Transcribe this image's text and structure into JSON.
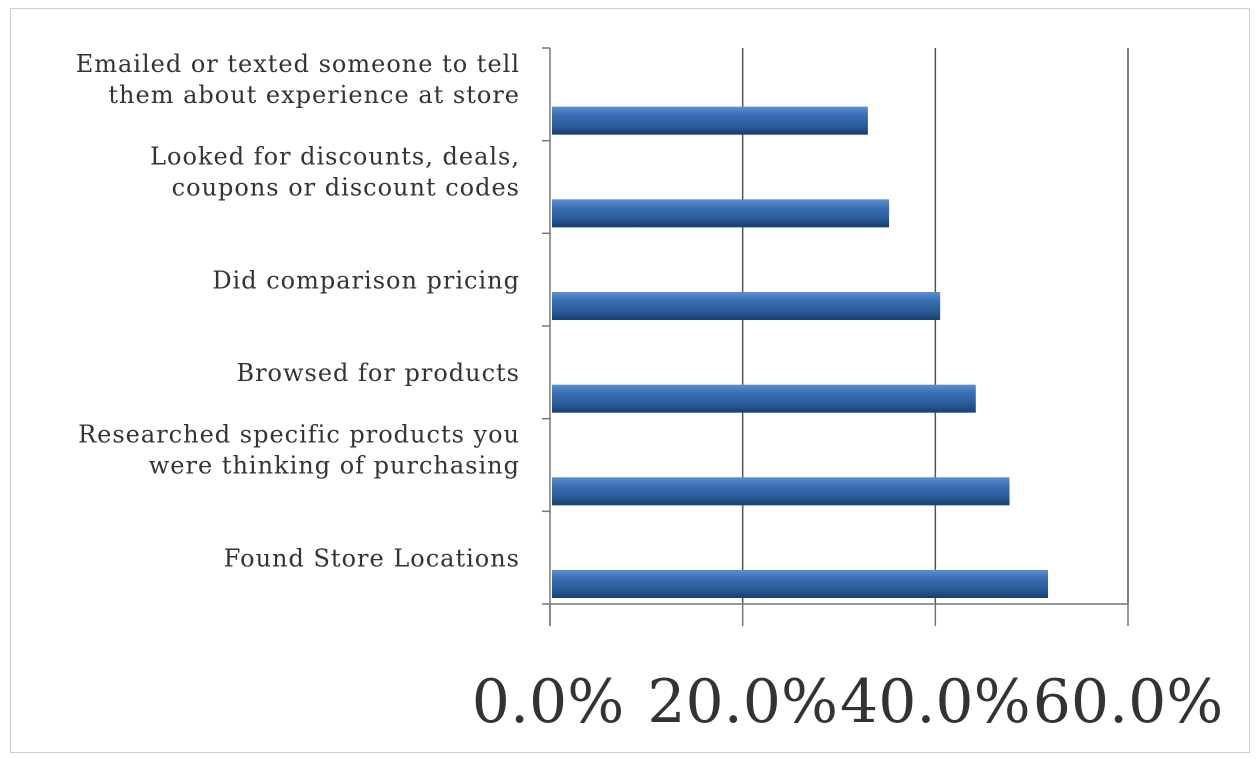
{
  "chart_data": {
    "type": "bar",
    "orientation": "horizontal",
    "categories": [
      [
        "Emailed or texted someone to tell",
        "them about experience at store"
      ],
      [
        "Looked for discounts, deals,",
        "coupons or discount codes"
      ],
      [
        "Did comparison pricing"
      ],
      [
        "Browsed for products"
      ],
      [
        "Researched specific products you",
        "were thinking of purchasing"
      ],
      [
        "Found Store Locations"
      ]
    ],
    "values": [
      33.0,
      35.2,
      40.5,
      44.2,
      47.7,
      51.7
    ],
    "xlim": [
      0,
      60
    ],
    "x_ticks": [
      0,
      20,
      40,
      60
    ],
    "x_tick_labels": [
      "0.0%",
      "20.0%",
      "40.0%",
      "60.0%"
    ],
    "grid": true,
    "legend": "none",
    "bar_color": "#2e63a6"
  }
}
